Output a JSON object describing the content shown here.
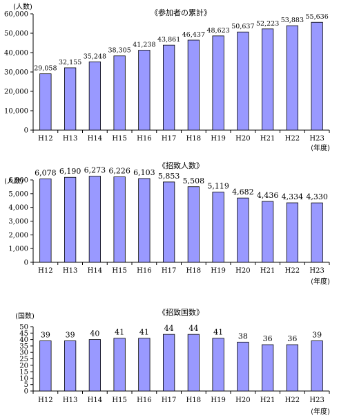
{
  "chart_data": [
    {
      "type": "bar",
      "title": "《参加者の累計》",
      "ylabel": "(人数)",
      "xlabel": "(年度)",
      "categories": [
        "H12",
        "H13",
        "H14",
        "H15",
        "H16",
        "H17",
        "H18",
        "H19",
        "H20",
        "H21",
        "H22",
        "H23"
      ],
      "values": [
        29058,
        32155,
        35248,
        38305,
        41238,
        43861,
        46437,
        48623,
        50637,
        52223,
        53883,
        55636
      ],
      "data_labels": [
        "29,058",
        "32,155",
        "35,248",
        "38,305",
        "41,238",
        "43,861",
        "46,437",
        "48,623",
        "50,637",
        "52,223",
        "53,883",
        "55,636"
      ],
      "yticks": [
        0,
        10000,
        20000,
        30000,
        40000,
        50000,
        60000
      ],
      "ytick_labels": [
        "0",
        "10,000",
        "20,000",
        "30,000",
        "40,000",
        "50,000",
        "60,000"
      ],
      "ylim": [
        0,
        60000
      ],
      "bar_color": "#9999ff"
    },
    {
      "type": "bar",
      "title": "《招致人数》",
      "ylabel": "(人数)",
      "xlabel": "(年度)",
      "categories": [
        "H12",
        "H13",
        "H14",
        "H15",
        "H16",
        "H17",
        "H18",
        "H19",
        "H20",
        "H21",
        "H22",
        "H23"
      ],
      "values": [
        6078,
        6190,
        6273,
        6226,
        6103,
        5853,
        5508,
        5119,
        4682,
        4436,
        4334,
        4330
      ],
      "data_labels": [
        "6,078",
        "6,190",
        "6,273",
        "6,226",
        "6,103",
        "5,853",
        "5,508",
        "5,119",
        "4,682",
        "4,436",
        "4,334",
        "4,330"
      ],
      "yticks": [
        0,
        1000,
        2000,
        3000,
        4000,
        5000,
        6000
      ],
      "ytick_labels": [
        "0",
        "1,000",
        "2,000",
        "3,000",
        "4,000",
        "5,000",
        "6,000"
      ],
      "ylim": [
        0,
        6000
      ],
      "bar_color": "#9999ff"
    },
    {
      "type": "bar",
      "title": "《招致国数》",
      "ylabel": "(国数)",
      "xlabel": "(年度)",
      "categories": [
        "H12",
        "H13",
        "H14",
        "H15",
        "H16",
        "H17",
        "H18",
        "H19",
        "H20",
        "H21",
        "H22",
        "H23"
      ],
      "values": [
        39,
        39,
        40,
        41,
        41,
        44,
        44,
        41,
        38,
        36,
        36,
        39
      ],
      "data_labels": [
        "39",
        "39",
        "40",
        "41",
        "41",
        "44",
        "44",
        "41",
        "38",
        "36",
        "36",
        "39"
      ],
      "yticks": [
        0,
        5,
        10,
        15,
        20,
        25,
        30,
        35,
        40,
        45,
        50
      ],
      "ytick_labels": [
        "0",
        "5",
        "10",
        "15",
        "20",
        "25",
        "30",
        "35",
        "40",
        "45",
        "50"
      ],
      "ylim": [
        0,
        50
      ],
      "bar_color": "#9999ff"
    }
  ]
}
